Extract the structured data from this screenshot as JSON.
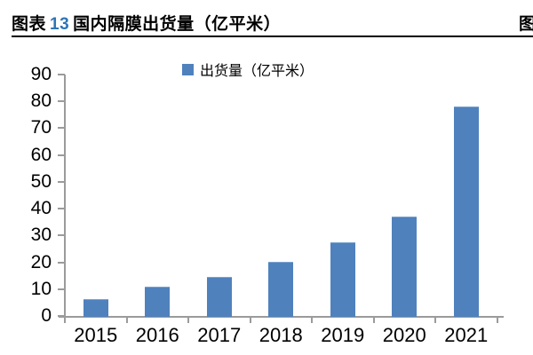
{
  "header": {
    "figure_label": "图表",
    "figure_number": "13",
    "figure_title": "国内隔膜出货量（亿平米）",
    "figure_number_color": "#2E75B6",
    "next_figure_partial": "图"
  },
  "chart_data": {
    "type": "bar",
    "title": "国内隔膜出货量（亿平米）",
    "legend": [
      "出货量（亿平米）"
    ],
    "legend_position": "top",
    "categories": [
      "2015",
      "2016",
      "2017",
      "2018",
      "2019",
      "2020",
      "2021"
    ],
    "values": [
      6.3,
      10.8,
      14.4,
      20.2,
      27.4,
      37.2,
      78
    ],
    "xlabel": "",
    "ylabel": "",
    "ylim": [
      0,
      90
    ],
    "yticks": [
      0,
      10,
      20,
      30,
      40,
      50,
      60,
      70,
      80,
      90
    ],
    "grid": false,
    "bar_color": "#4F81BD",
    "bar_edge_color": "#7DA3CE",
    "axis_color": "#9B9B9B",
    "text_color": "#000000"
  }
}
